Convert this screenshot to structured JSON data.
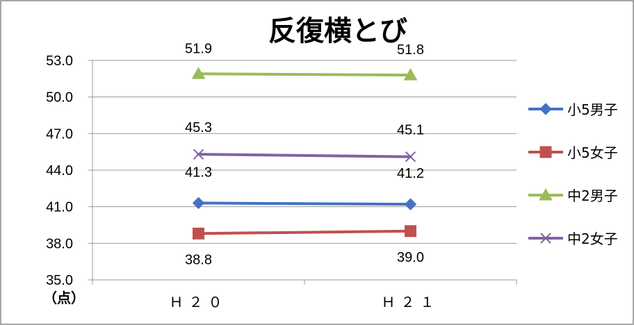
{
  "chart_data": {
    "type": "line",
    "title": "反復横とび",
    "unit_label": "（点）",
    "categories": [
      "Ｈ２０",
      "Ｈ２１"
    ],
    "ylim": [
      35.0,
      53.0
    ],
    "yticks": [
      "35.0",
      "38.0",
      "41.0",
      "44.0",
      "47.0",
      "50.0",
      "53.0"
    ],
    "grid": true,
    "legend_position": "right",
    "series": [
      {
        "name": "小5男子",
        "values": [
          41.3,
          41.2
        ],
        "color": "#4472C4",
        "marker": "diamond",
        "labels": [
          "41.3",
          "41.2"
        ]
      },
      {
        "name": "小5女子",
        "values": [
          38.8,
          39.0
        ],
        "color": "#C0504D",
        "marker": "square",
        "labels": [
          "38.8",
          "39.0"
        ]
      },
      {
        "name": "中2男子",
        "values": [
          51.9,
          51.8
        ],
        "color": "#9BBB59",
        "marker": "triangle",
        "labels": [
          "51.9",
          "51.8"
        ]
      },
      {
        "name": "中2女子",
        "values": [
          45.3,
          45.1
        ],
        "color": "#8064A2",
        "marker": "x",
        "labels": [
          "45.3",
          "45.1"
        ]
      }
    ]
  }
}
